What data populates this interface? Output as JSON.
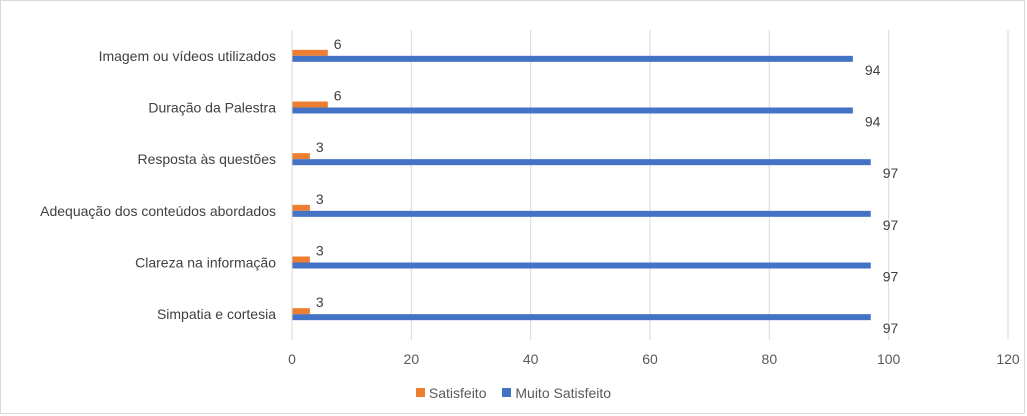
{
  "chart_data": {
    "type": "bar",
    "orientation": "horizontal",
    "categories": [
      "Imagem ou vídeos utilizados",
      "Duração da Palestra",
      "Resposta às questões",
      "Adequação dos conteúdos abordados",
      "Clareza na informação",
      "Simpatia e cortesia"
    ],
    "series": [
      {
        "name": "Satisfeito",
        "color": "#ED7D31",
        "values": [
          6,
          6,
          3,
          3,
          3,
          3
        ]
      },
      {
        "name": "Muito Satisfeito",
        "color": "#4472C4",
        "values": [
          94,
          94,
          97,
          97,
          97,
          97
        ]
      }
    ],
    "xlim": [
      0,
      120
    ],
    "xticks": [
      0,
      20,
      40,
      60,
      80,
      100,
      120
    ],
    "grid": true,
    "legend_position": "bottom",
    "data_labels": true,
    "title": "",
    "xlabel": "",
    "ylabel": ""
  },
  "legend": {
    "items": [
      {
        "label": "Satisfeito",
        "color": "#ED7D31"
      },
      {
        "label": "Muito Satisfeito",
        "color": "#4472C4"
      }
    ]
  }
}
